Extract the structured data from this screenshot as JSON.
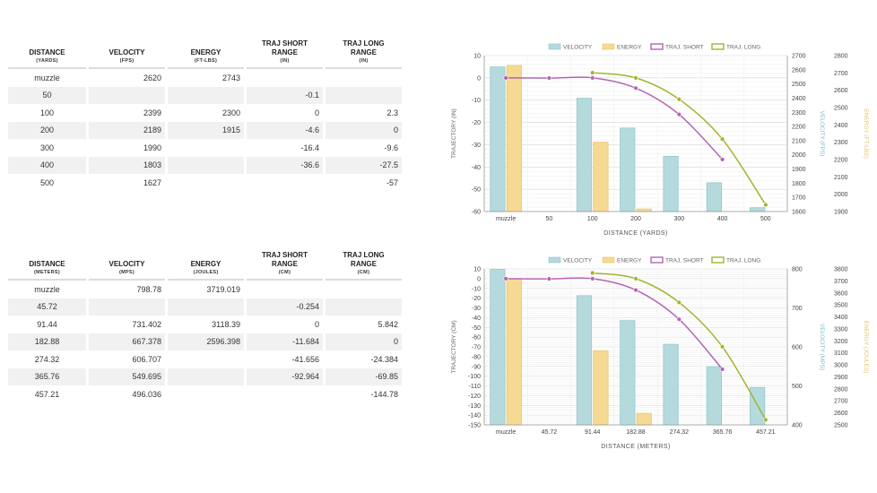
{
  "tables": [
    {
      "headers": [
        {
          "title": "DISTANCE",
          "unit": "(YARDS)"
        },
        {
          "title": "VELOCITY",
          "unit": "(FPS)"
        },
        {
          "title": "ENERGY",
          "unit": "(FT-LBS)"
        },
        {
          "title": "TRAJ SHORT RANGE",
          "unit": "(IN)"
        },
        {
          "title": "TRAJ LONG RANGE",
          "unit": "(IN)"
        }
      ],
      "rows": [
        [
          "muzzle",
          "2620",
          "2743",
          "",
          ""
        ],
        [
          "50",
          "",
          "",
          "-0.1",
          ""
        ],
        [
          "100",
          "2399",
          "2300",
          "0",
          "2.3"
        ],
        [
          "200",
          "2189",
          "1915",
          "-4.6",
          "0"
        ],
        [
          "300",
          "1990",
          "",
          "-16.4",
          "-9.6"
        ],
        [
          "400",
          "1803",
          "",
          "-36.6",
          "-27.5"
        ],
        [
          "500",
          "1627",
          "",
          "",
          "-57"
        ]
      ]
    },
    {
      "headers": [
        {
          "title": "DISTANCE",
          "unit": "(METERS)"
        },
        {
          "title": "VELOCITY",
          "unit": "(MPS)"
        },
        {
          "title": "ENERGY",
          "unit": "(JOULES)"
        },
        {
          "title": "TRAJ SHORT RANGE",
          "unit": "(CM)"
        },
        {
          "title": "TRAJ LONG RANGE",
          "unit": "(CM)"
        }
      ],
      "rows": [
        [
          "muzzle",
          "798.78",
          "3719.019",
          "",
          ""
        ],
        [
          "45.72",
          "",
          "",
          "-0.254",
          ""
        ],
        [
          "91.44",
          "731.402",
          "3118.39",
          "0",
          "5.842"
        ],
        [
          "182.88",
          "667.378",
          "2596.398",
          "-11.684",
          "0"
        ],
        [
          "274.32",
          "606.707",
          "",
          "-41.656",
          "-24.384"
        ],
        [
          "365.76",
          "549.695",
          "",
          "-92.964",
          "-69.85"
        ],
        [
          "457.21",
          "496.036",
          "",
          "",
          "-144.78"
        ]
      ]
    }
  ],
  "chart_data": [
    {
      "type": "bar",
      "categories": [
        "muzzle",
        "50",
        "100",
        "200",
        "300",
        "400",
        "500"
      ],
      "xlabel": "DISTANCE (YARDS)",
      "legend": [
        "VELOCITY",
        "ENERGY",
        "TRAJ. SHORT",
        "TRAJ. LONG"
      ],
      "legend_position": "top-center",
      "grid": true,
      "axes": {
        "left": {
          "label": "TRAJECTORY (IN)",
          "min": -60,
          "max": 10,
          "ticks": [
            10,
            0,
            -10,
            -20,
            -30,
            -40,
            -50,
            -60
          ]
        },
        "right1": {
          "label": "VELOCITY (FPS)",
          "min": 1600,
          "max": 2700,
          "ticks": [
            2700,
            2600,
            2500,
            2400,
            2300,
            2200,
            2100,
            2000,
            1900,
            1800,
            1700,
            1600
          ]
        },
        "right2": {
          "label": "ENERGY (FT-LBS)",
          "min": 1900,
          "max": 2800,
          "ticks": [
            2800,
            2700,
            2600,
            2500,
            2400,
            2300,
            2200,
            2100,
            2000,
            1900
          ]
        }
      },
      "series": [
        {
          "name": "VELOCITY",
          "kind": "bar",
          "axis": "right1",
          "color": "#b5dade",
          "stroke": "#8fc3c8",
          "values": [
            2620,
            null,
            2399,
            2189,
            1990,
            1803,
            1627
          ]
        },
        {
          "name": "ENERGY",
          "kind": "bar",
          "axis": "right2",
          "color": "#f6d992",
          "stroke": "#e8c46a",
          "values": [
            2743,
            null,
            2300,
            1915,
            null,
            null,
            null
          ]
        },
        {
          "name": "TRAJ. SHORT",
          "kind": "line",
          "axis": "left",
          "color": "#b464b4",
          "values": [
            0,
            -0.1,
            0,
            -4.6,
            -16.4,
            -36.6,
            null
          ]
        },
        {
          "name": "TRAJ. LONG",
          "kind": "line",
          "axis": "left",
          "color": "#a3b52d",
          "values": [
            null,
            null,
            2.3,
            0,
            -9.6,
            -27.5,
            -57
          ]
        }
      ]
    },
    {
      "type": "bar",
      "categories": [
        "muzzle",
        "45.72",
        "91.44",
        "182.88",
        "274.32",
        "365.76",
        "457.21"
      ],
      "xlabel": "DISTANCE (METERS)",
      "legend": [
        "VELOCITY",
        "ENERGY",
        "TRAJ. SHORT",
        "TRAJ. LONG"
      ],
      "legend_position": "top-center",
      "grid": true,
      "axes": {
        "left": {
          "label": "TRAJECTORY (CM)",
          "min": -150,
          "max": 10,
          "ticks": [
            10,
            0,
            -10,
            -20,
            -30,
            -40,
            -50,
            -60,
            -70,
            -80,
            -90,
            -100,
            -110,
            -120,
            -130,
            -140,
            -150
          ]
        },
        "right1": {
          "label": "VELOCITY (MPS)",
          "min": 400,
          "max": 800,
          "ticks": [
            800,
            700,
            600,
            500,
            400
          ]
        },
        "right2": {
          "label": "ENERGY (JOULES)",
          "min": 2500,
          "max": 3800,
          "ticks": [
            3800,
            3700,
            3600,
            3500,
            3400,
            3300,
            3200,
            3100,
            3000,
            2900,
            2800,
            2700,
            2600,
            2500
          ]
        }
      },
      "series": [
        {
          "name": "VELOCITY",
          "kind": "bar",
          "axis": "right1",
          "color": "#b5dade",
          "stroke": "#8fc3c8",
          "values": [
            798.78,
            null,
            731.402,
            667.378,
            606.707,
            549.695,
            496.036
          ]
        },
        {
          "name": "ENERGY",
          "kind": "bar",
          "axis": "right2",
          "color": "#f6d992",
          "stroke": "#e8c46a",
          "values": [
            3719.019,
            null,
            3118.39,
            2596.398,
            null,
            null,
            null
          ]
        },
        {
          "name": "TRAJ. SHORT",
          "kind": "line",
          "axis": "left",
          "color": "#b464b4",
          "values": [
            0,
            -0.254,
            0,
            -11.684,
            -41.656,
            -92.964,
            null
          ]
        },
        {
          "name": "TRAJ. LONG",
          "kind": "line",
          "axis": "left",
          "color": "#a3b52d",
          "values": [
            null,
            null,
            5.842,
            0,
            -24.384,
            -69.85,
            -144.78
          ]
        }
      ]
    }
  ]
}
